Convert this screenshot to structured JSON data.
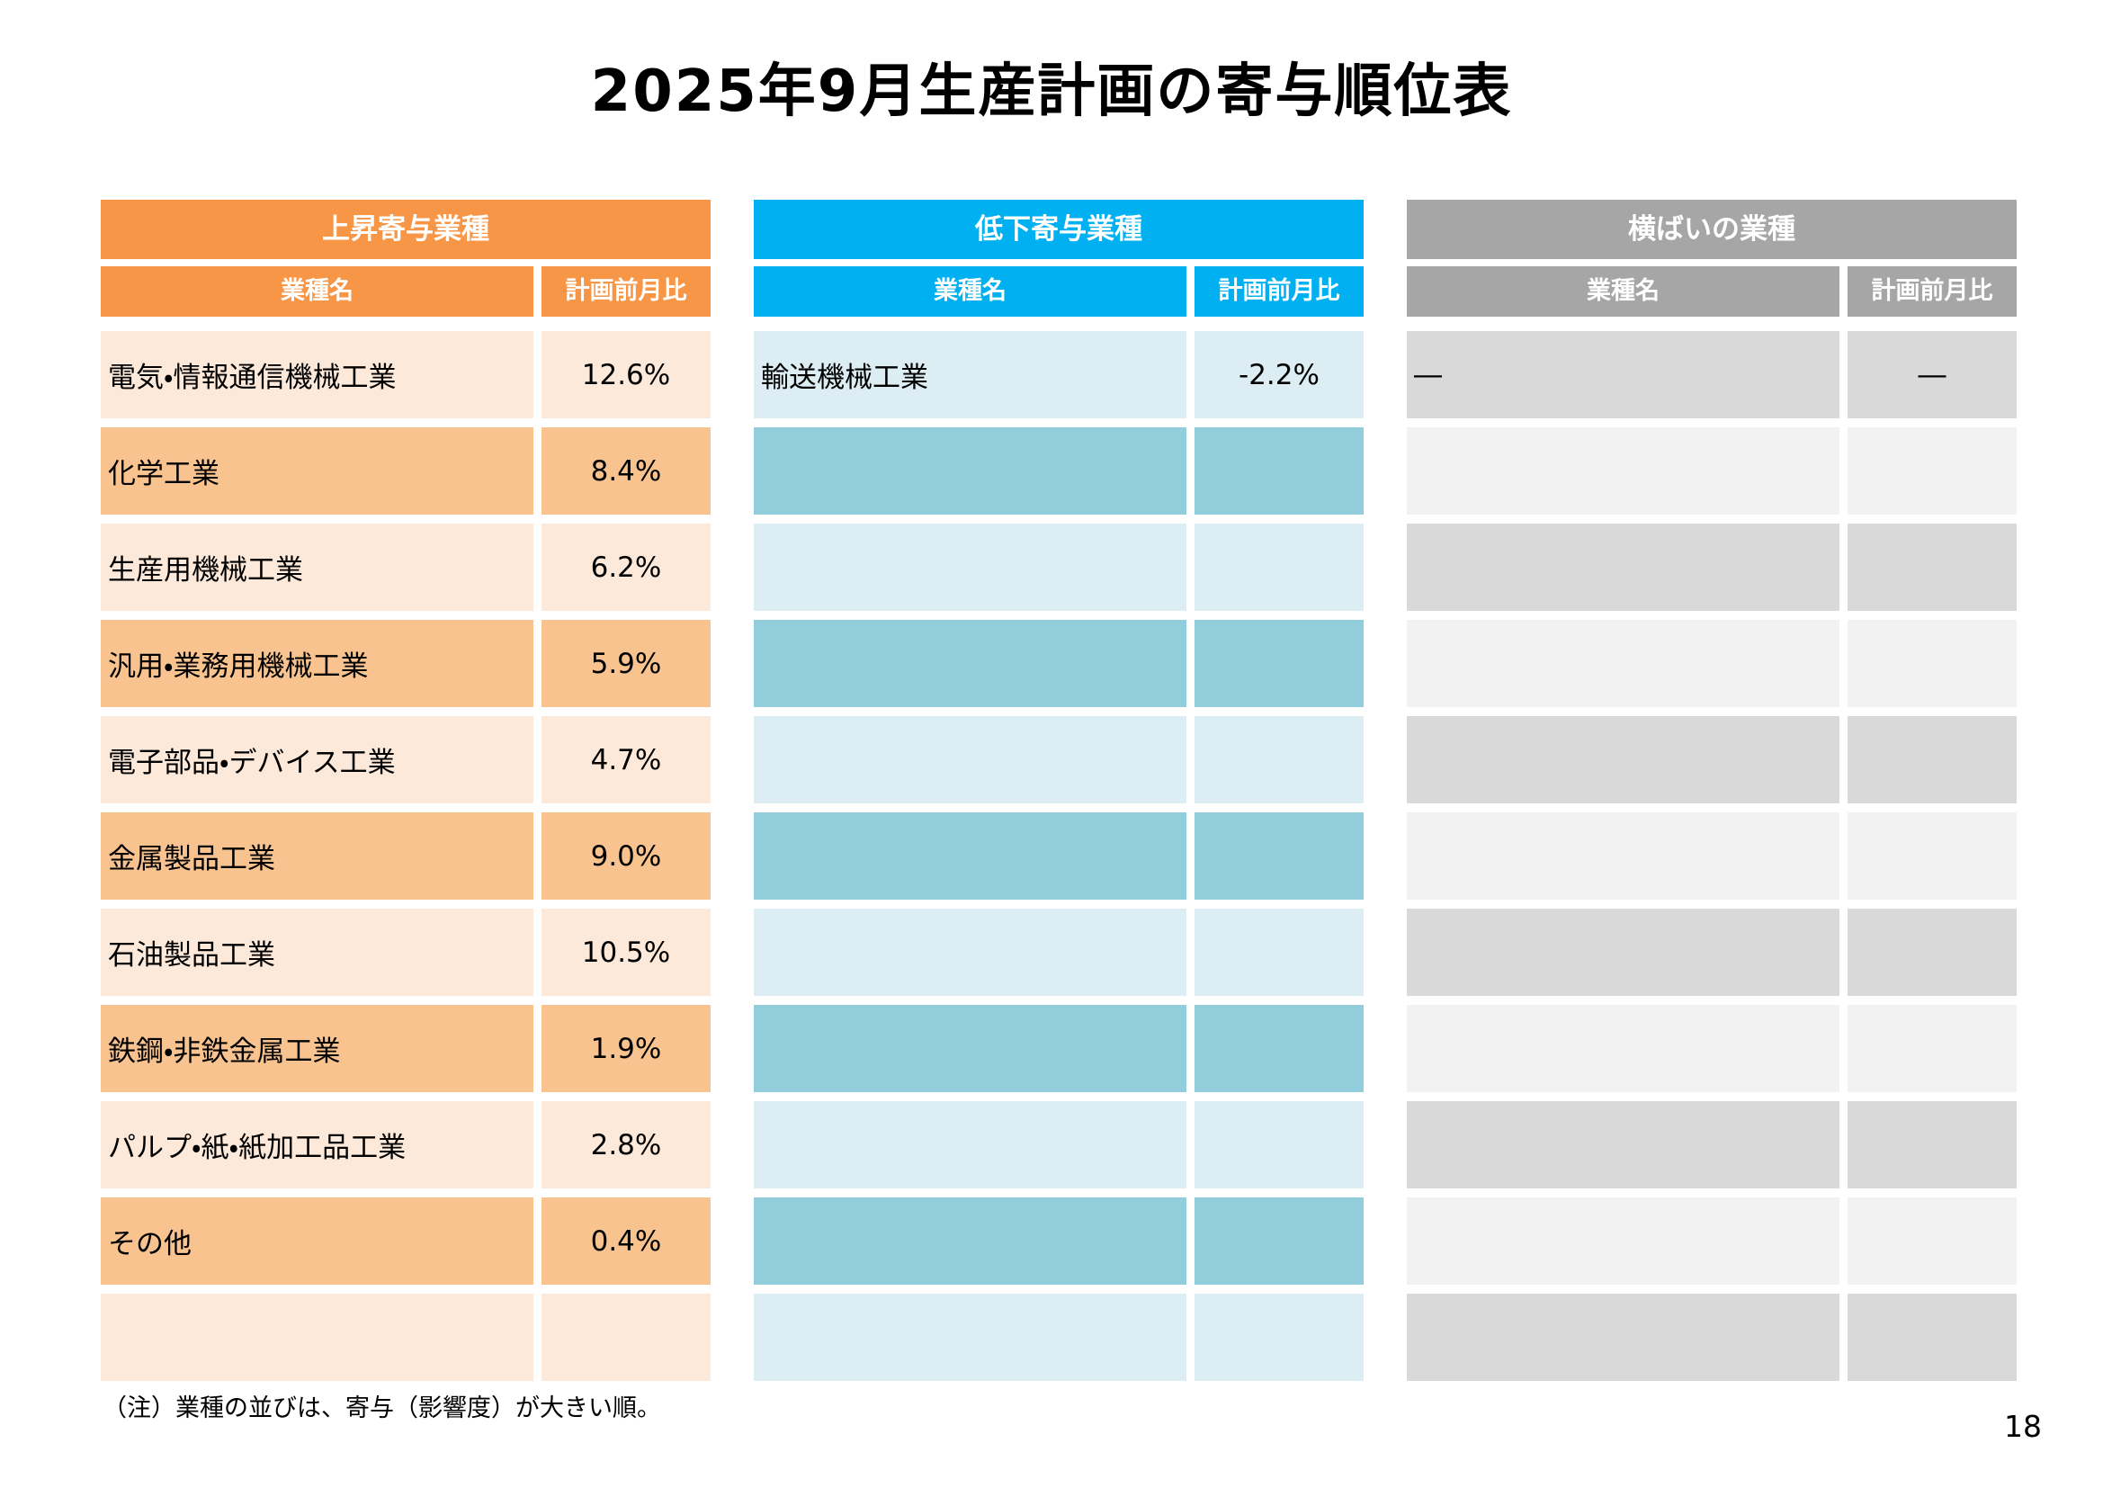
{
  "page": {
    "title": "2025年9月生産計画の寄与順位表",
    "note": "（注）業種の並びは、寄与（影響度）が大きい順。",
    "page_number": "18"
  },
  "colors": {
    "rising_header": "#F79646",
    "rising_row_light": "#FDE9D9",
    "rising_row_dark": "#F9C390",
    "declining_header": "#00B0F0",
    "declining_row_light": "#DCEDF3",
    "declining_row_dark": "#92CDDC",
    "flat_header": "#A6A6A6",
    "flat_row_dark": "#D9D9D9",
    "flat_row_light": "#F2F2F2"
  },
  "tables": [
    {
      "title": "上昇寄与業種",
      "columns": {
        "name": "業種名",
        "value": "計画前月比"
      },
      "rows": [
        {
          "name": "電気・情報通信機械工業",
          "value": "12.6%"
        },
        {
          "name": "化学工業",
          "value": "8.4%"
        },
        {
          "name": "生産用機械工業",
          "value": "6.2%"
        },
        {
          "name": "汎用・業務用機械工業",
          "value": "5.9%"
        },
        {
          "name": "電子部品・デバイス工業",
          "value": "4.7%"
        },
        {
          "name": "金属製品工業",
          "value": "9.0%"
        },
        {
          "name": "石油製品工業",
          "value": "10.5%"
        },
        {
          "name": "鉄鋼・非鉄金属工業",
          "value": "1.9%"
        },
        {
          "name": "パルプ・紙・紙加工品工業",
          "value": "2.8%"
        },
        {
          "name": "その他",
          "value": "0.4%"
        },
        {
          "name": "",
          "value": ""
        }
      ]
    },
    {
      "title": "低下寄与業種",
      "columns": {
        "name": "業種名",
        "value": "計画前月比"
      },
      "rows": [
        {
          "name": "輸送機械工業",
          "value": "-2.2%"
        },
        {
          "name": "",
          "value": ""
        },
        {
          "name": "",
          "value": ""
        },
        {
          "name": "",
          "value": ""
        },
        {
          "name": "",
          "value": ""
        },
        {
          "name": "",
          "value": ""
        },
        {
          "name": "",
          "value": ""
        },
        {
          "name": "",
          "value": ""
        },
        {
          "name": "",
          "value": ""
        },
        {
          "name": "",
          "value": ""
        },
        {
          "name": "",
          "value": ""
        }
      ]
    },
    {
      "title": "横ばいの業種",
      "columns": {
        "name": "業種名",
        "value": "計画前月比"
      },
      "rows": [
        {
          "name": "―",
          "value": "―"
        },
        {
          "name": "",
          "value": ""
        },
        {
          "name": "",
          "value": ""
        },
        {
          "name": "",
          "value": ""
        },
        {
          "name": "",
          "value": ""
        },
        {
          "name": "",
          "value": ""
        },
        {
          "name": "",
          "value": ""
        },
        {
          "name": "",
          "value": ""
        },
        {
          "name": "",
          "value": ""
        },
        {
          "name": "",
          "value": ""
        },
        {
          "name": "",
          "value": ""
        }
      ]
    }
  ]
}
